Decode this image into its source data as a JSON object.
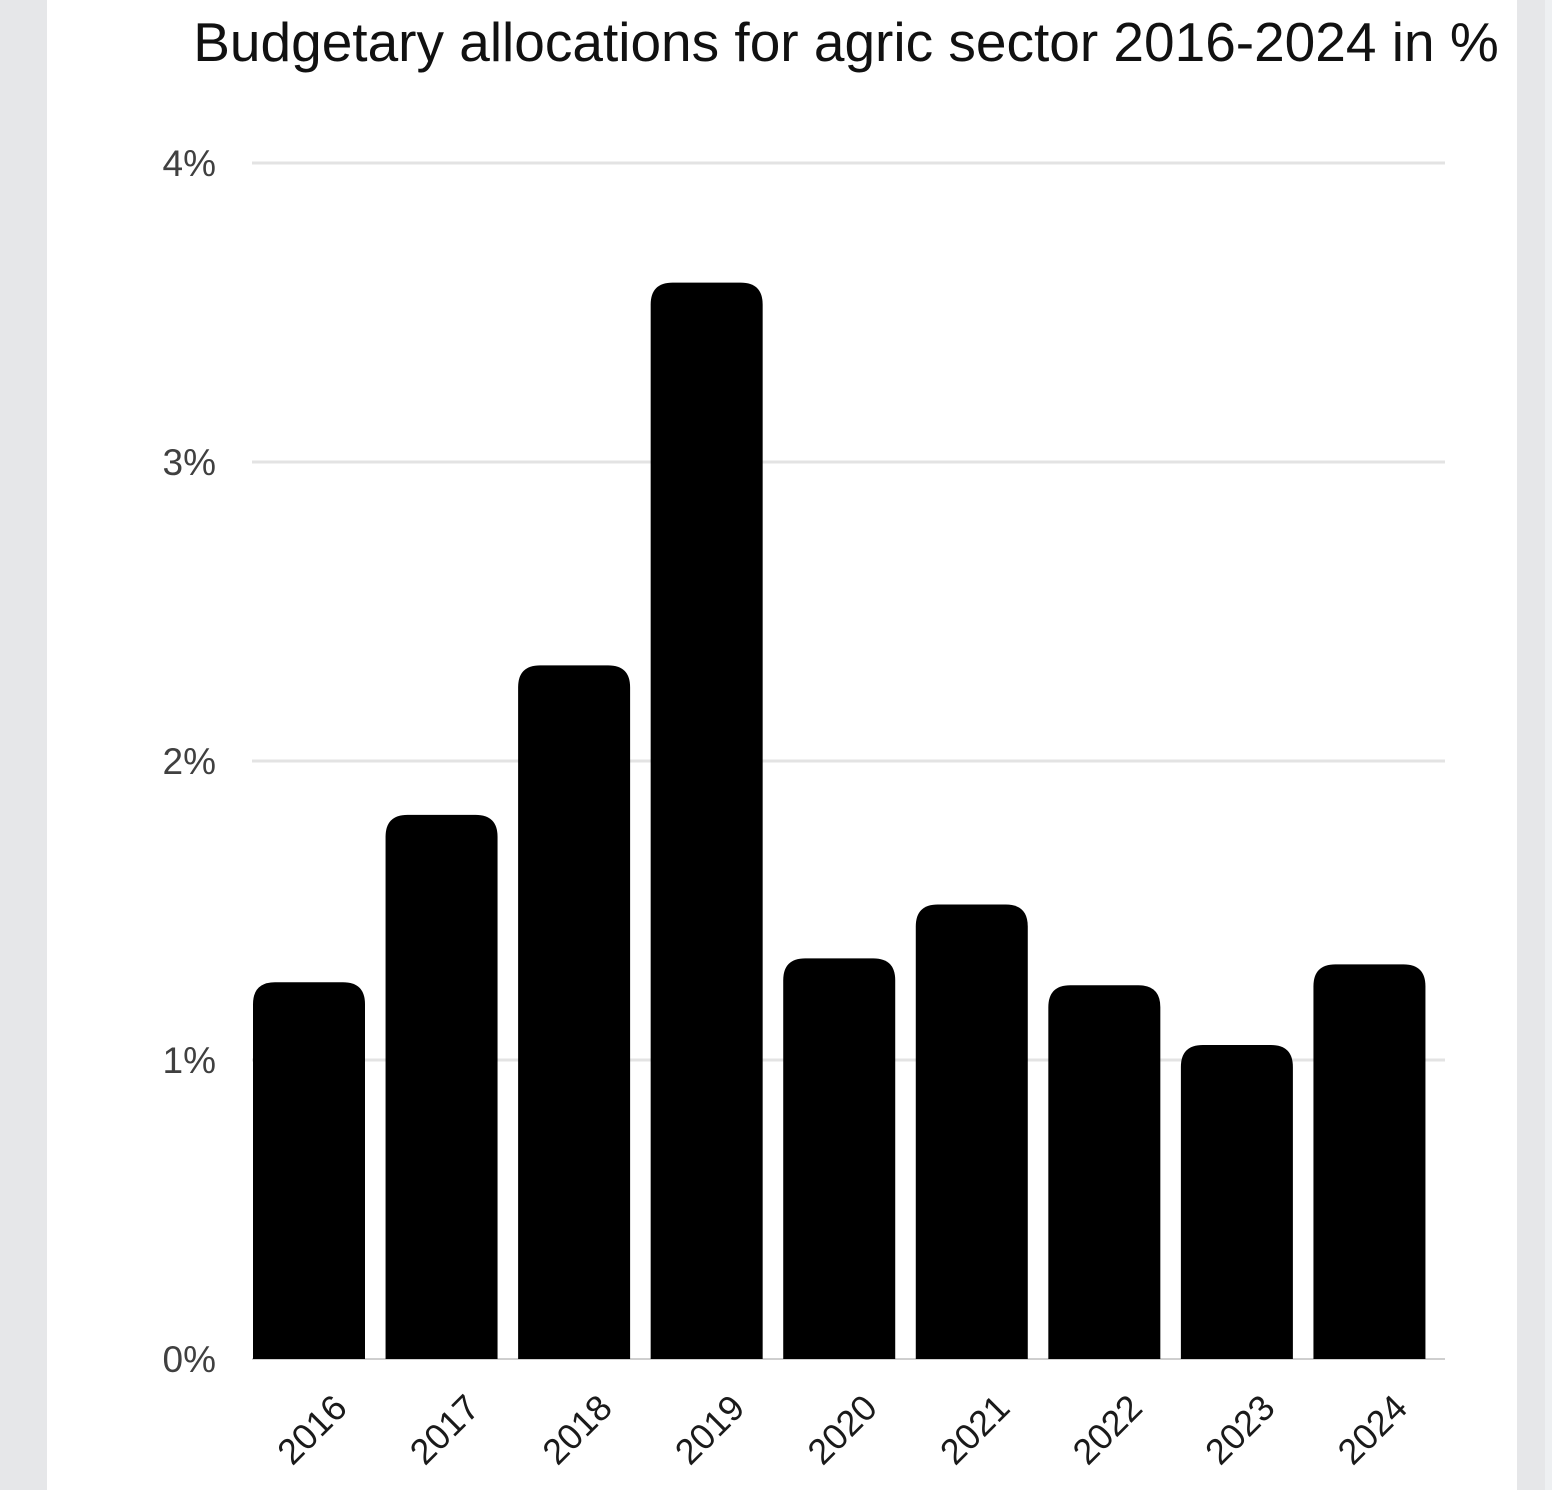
{
  "chart_data": {
    "type": "bar",
    "title": "Budgetary allocations for agric sector 2016-2024 in %",
    "xlabel": "",
    "ylabel": "",
    "categories": [
      "2016",
      "2017",
      "2018",
      "2019",
      "2020",
      "2021",
      "2022",
      "2023",
      "2024"
    ],
    "values": [
      1.26,
      1.82,
      2.32,
      3.6,
      1.34,
      1.52,
      1.25,
      1.05,
      1.32
    ],
    "ylim": [
      0,
      4
    ],
    "yticks": [
      "0%",
      "1%",
      "2%",
      "3%",
      "4%"
    ],
    "bar_color": "#000000",
    "grid": true,
    "legend": "none"
  }
}
